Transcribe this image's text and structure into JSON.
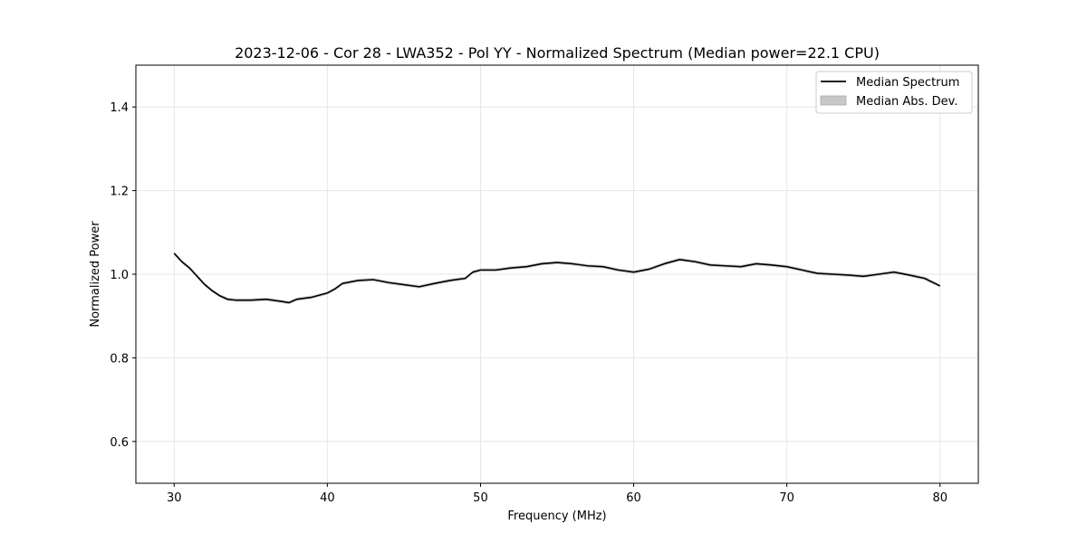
{
  "chart_data": {
    "type": "line",
    "title": "2023-12-06 - Cor 28 - LWA352 - Pol YY - Normalized Spectrum (Median power=22.1 CPU)",
    "xlabel": "Frequency (MHz)",
    "ylabel": "Normalized Power",
    "xlim": [
      27.5,
      82.5
    ],
    "ylim": [
      0.5,
      1.5
    ],
    "xticks": [
      30,
      40,
      50,
      60,
      70,
      80
    ],
    "yticks": [
      0.6,
      0.8,
      1.0,
      1.2,
      1.4
    ],
    "xtick_labels": [
      "30",
      "40",
      "50",
      "60",
      "70",
      "80"
    ],
    "ytick_labels": [
      "0.6",
      "0.8",
      "1.0",
      "1.2",
      "1.4"
    ],
    "grid": true,
    "legend_position": "top-right",
    "legend": [
      "Median Spectrum",
      "Median Abs. Dev."
    ],
    "series": [
      {
        "name": "Median Spectrum",
        "color": "#000000",
        "x": [
          30,
          30.5,
          31,
          31.5,
          32,
          32.5,
          33,
          33.5,
          34,
          35,
          36,
          37,
          37.5,
          38,
          39,
          40,
          40.5,
          41,
          42,
          43,
          44,
          45,
          46,
          47,
          48,
          49,
          49.5,
          50,
          51,
          52,
          53,
          54,
          55,
          56,
          57,
          58,
          59,
          60,
          61,
          62,
          63,
          64,
          65,
          66,
          67,
          68,
          69,
          70,
          71,
          72,
          73,
          74,
          75,
          76,
          77,
          78,
          79,
          80
        ],
        "y": [
          1.05,
          1.03,
          1.015,
          0.995,
          0.975,
          0.96,
          0.948,
          0.94,
          0.938,
          0.938,
          0.94,
          0.935,
          0.932,
          0.94,
          0.945,
          0.955,
          0.965,
          0.978,
          0.985,
          0.987,
          0.98,
          0.975,
          0.97,
          0.978,
          0.985,
          0.99,
          1.005,
          1.01,
          1.01,
          1.015,
          1.018,
          1.025,
          1.028,
          1.025,
          1.02,
          1.018,
          1.01,
          1.005,
          1.012,
          1.025,
          1.035,
          1.03,
          1.022,
          1.02,
          1.018,
          1.025,
          1.022,
          1.018,
          1.01,
          1.002,
          1.0,
          0.998,
          0.995,
          1.0,
          1.005,
          0.998,
          0.99,
          0.972
        ]
      },
      {
        "name": "Median Abs. Dev.",
        "color": "#c8c8c8",
        "type": "band",
        "half_width": 0.004
      }
    ]
  }
}
